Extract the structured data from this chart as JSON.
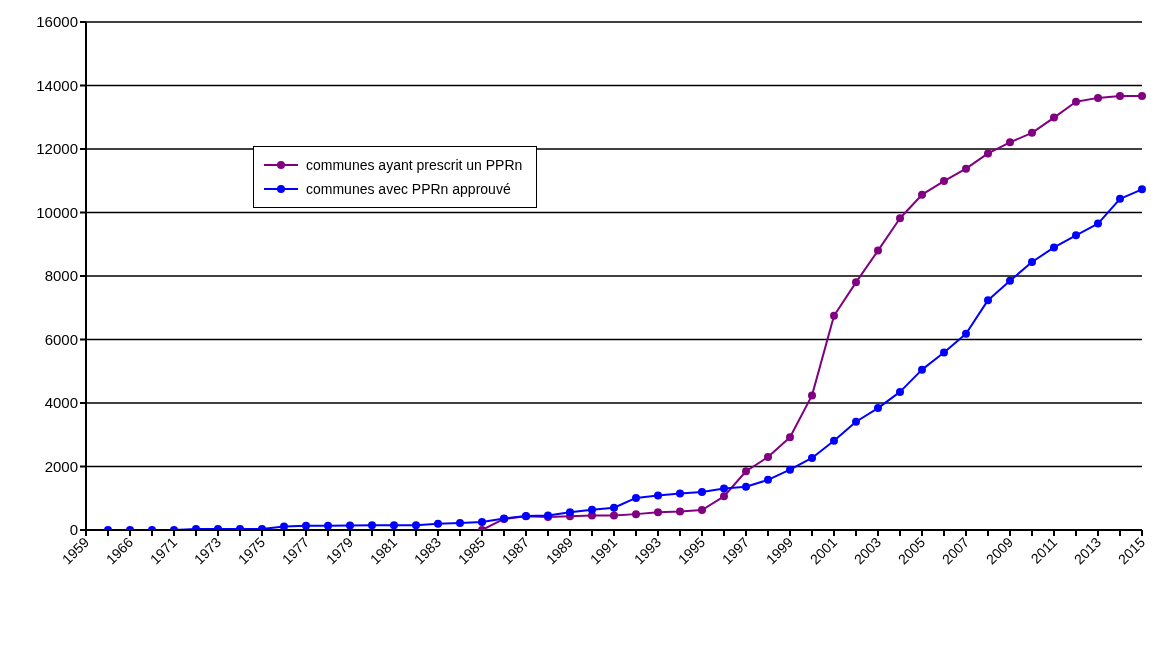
{
  "chart_data": {
    "type": "line",
    "categories": [
      "1959",
      null,
      "1966",
      null,
      "1971",
      null,
      "1973",
      null,
      "1975",
      null,
      "1977",
      null,
      "1979",
      null,
      "1981",
      null,
      "1983",
      null,
      "1985",
      null,
      "1987",
      null,
      "1989",
      null,
      "1991",
      null,
      "1993",
      null,
      "1995",
      null,
      "1997",
      null,
      "1999",
      null,
      "2001",
      null,
      "2003",
      null,
      "2005",
      null,
      "2007",
      null,
      "2009",
      null,
      "2011",
      null,
      "2013",
      null,
      "2015"
    ],
    "series": [
      {
        "name": "communes ayant prescrit un PPRn",
        "color": "#800080",
        "values": [
          null,
          null,
          null,
          null,
          null,
          null,
          null,
          null,
          null,
          null,
          null,
          null,
          null,
          null,
          null,
          null,
          null,
          null,
          0,
          350,
          430,
          410,
          430,
          460,
          460,
          500,
          560,
          580,
          630,
          1060,
          1850,
          2300,
          2920,
          4240,
          6750,
          7800,
          8800,
          9820,
          10560,
          10990,
          11380,
          11860,
          12210,
          12510,
          12990,
          13490,
          13610,
          13670,
          13670
        ]
      },
      {
        "name": "communes avec PPRn approuvé",
        "color": "#0000ff",
        "values": [
          null,
          0,
          0,
          0,
          0,
          30,
          30,
          30,
          30,
          110,
          130,
          130,
          140,
          150,
          150,
          150,
          200,
          220,
          250,
          360,
          440,
          460,
          560,
          640,
          700,
          1010,
          1090,
          1150,
          1200,
          1310,
          1360,
          1580,
          1900,
          2270,
          2810,
          3410,
          3840,
          4350,
          5050,
          5590,
          6180,
          7240,
          7850,
          8440,
          8900,
          9280,
          9650,
          10430,
          10730
        ]
      }
    ],
    "ylim": [
      0,
      16000
    ],
    "yticks": [
      0,
      2000,
      4000,
      6000,
      8000,
      10000,
      12000,
      14000,
      16000
    ],
    "grid": "y",
    "legend": "top left",
    "marker": "circle",
    "line_style": "solid"
  }
}
